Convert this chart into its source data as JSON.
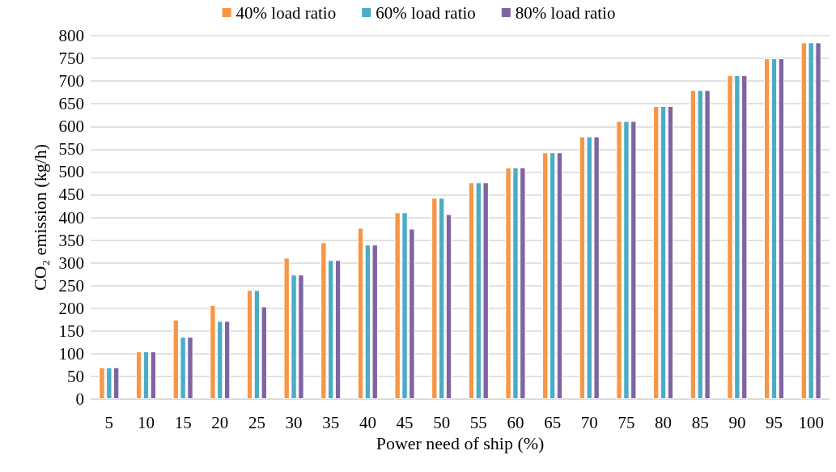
{
  "chart_data": {
    "type": "bar",
    "xlabel": "Power need of ship (%)",
    "ylabel": "CO₂ emission (kg/h)",
    "categories": [
      "5",
      "10",
      "15",
      "20",
      "25",
      "30",
      "35",
      "40",
      "45",
      "50",
      "55",
      "60",
      "65",
      "70",
      "75",
      "80",
      "85",
      "90",
      "95",
      "100"
    ],
    "series": [
      {
        "name": "40% load ratio",
        "color": "#f79646",
        "values": [
          70,
          105,
          175,
          207,
          240,
          311,
          345,
          377,
          411,
          443,
          477,
          510,
          543,
          578,
          612,
          645,
          680,
          713,
          750,
          785
        ]
      },
      {
        "name": "60% load ratio",
        "color": "#4bacc6",
        "values": [
          70,
          105,
          137,
          172,
          240,
          274,
          306,
          340,
          411,
          443,
          477,
          510,
          543,
          578,
          612,
          645,
          680,
          713,
          750,
          785
        ]
      },
      {
        "name": "80% load ratio",
        "color": "#8064a2",
        "values": [
          70,
          105,
          137,
          172,
          204,
          274,
          306,
          340,
          375,
          407,
          477,
          510,
          543,
          578,
          612,
          645,
          680,
          713,
          750,
          785
        ]
      }
    ],
    "ylim": [
      0,
      800
    ],
    "yticks": [
      0,
      50,
      100,
      150,
      200,
      250,
      300,
      350,
      400,
      450,
      500,
      550,
      600,
      650,
      700,
      750,
      800
    ],
    "grid": "y",
    "legend": "top"
  }
}
